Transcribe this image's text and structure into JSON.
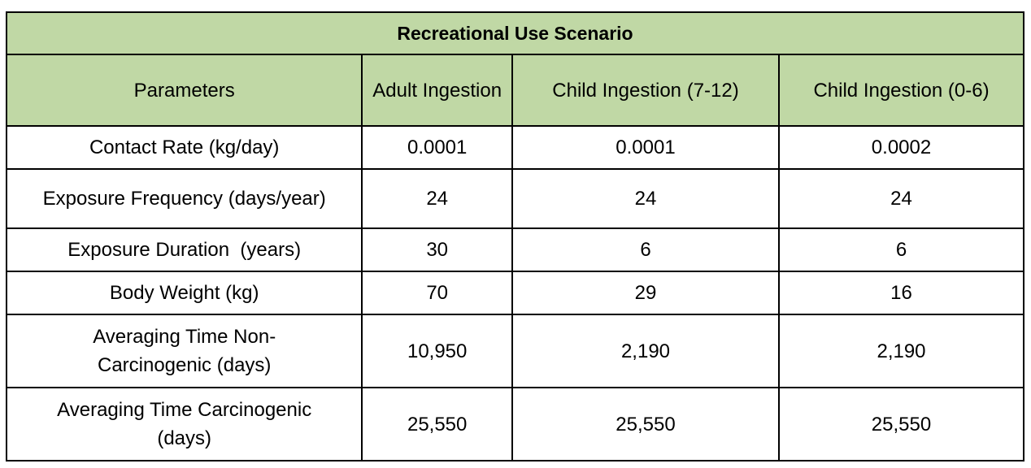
{
  "colors": {
    "header_bg": "#c0d8a5",
    "border": "#000000",
    "cell_bg": "#ffffff"
  },
  "table": {
    "scenario": "Recreational Use Scenario",
    "columns": [
      "Parameters",
      "Adult Ingestion",
      "Child Ingestion (7-12)",
      "Child Ingestion (0-6)"
    ],
    "rows": [
      {
        "param": "Contact Rate (kg/day)",
        "adult": "0.0001",
        "child_7_12": "0.0001",
        "child_0_6": "0.0002"
      },
      {
        "param": "Exposure Frequency (days/year)",
        "adult": "24",
        "child_7_12": "24",
        "child_0_6": "24"
      },
      {
        "param": "Exposure Duration  (years)",
        "adult": "30",
        "child_7_12": "6",
        "child_0_6": "6"
      },
      {
        "param": "Body Weight (kg)",
        "adult": "70",
        "child_7_12": "29",
        "child_0_6": "16"
      },
      {
        "param": "Averaging Time Non-Carcinogenic (days)",
        "adult": "10,950",
        "child_7_12": "2,190",
        "child_0_6": "2,190"
      },
      {
        "param": "Averaging Time Carcinogenic (days)",
        "adult": "25,550",
        "child_7_12": "25,550",
        "child_0_6": "25,550"
      }
    ]
  }
}
